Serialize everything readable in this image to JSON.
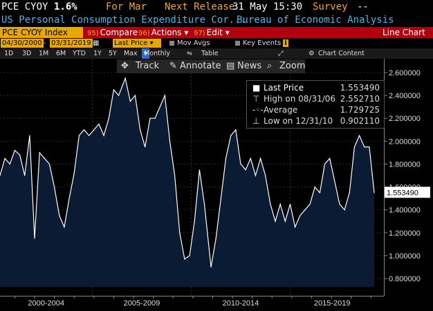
{
  "header": {
    "ticker": "PCE CYOY",
    "last_value": "1.6%",
    "period": "For Mar",
    "next_release_label": "Next Release",
    "next_release": "31 May 15:30",
    "survey_label": "Survey",
    "survey_value": "--"
  },
  "subheader": {
    "description": "US Personal Consumption Expenditure Cor...",
    "source": "Bureau of Economic Analysis"
  },
  "menu": {
    "index_label": "PCE CYOY Index",
    "compare_num": "95)",
    "compare_label": "Compare",
    "actions_num": "96)",
    "actions_label": "Actions",
    "edit_num": "97)",
    "edit_label": "Edit",
    "chart_type": "Line Chart"
  },
  "controls": {
    "start_date": "04/30/2000",
    "end_date": "03/31/2019",
    "price_field": "Last Price",
    "mov_avgs": "Mov Avgs",
    "key_events": "Key Events"
  },
  "ranges": {
    "items": [
      "1D",
      "3D",
      "1M",
      "6M",
      "YTD",
      "1Y",
      "5Y",
      "Max"
    ],
    "frequency": "Monthly",
    "table": "Table",
    "chart_content": "Chart Content"
  },
  "toolbar": {
    "track": "Track",
    "annotate": "Annotate",
    "news": "News",
    "zoom": "Zoom"
  },
  "legend": {
    "last_price_label": "Last Price",
    "last_price_value": "1.553490",
    "high_label": "High on 08/31/06",
    "high_value": "2.552710",
    "average_label": "Average",
    "average_value": "1.729725",
    "low_label": "Low on 12/31/10",
    "low_value": "0.902110"
  },
  "colors": {
    "accent_orange": "#f5a623",
    "title_blue": "#4fb4e8",
    "menu_red": "#b3000f",
    "index_amber": "#e8a800",
    "area_fill": "#0b1b33"
  },
  "chart_data": {
    "type": "area",
    "title": "",
    "xlabel": "",
    "ylabel": "",
    "x_range": [
      "2000-04",
      "2019-03"
    ],
    "ylim": [
      0.7,
      2.7
    ],
    "y_ticks": [
      "2.600000",
      "2.400000",
      "2.200000",
      "2.000000",
      "1.800000",
      "1.600000",
      "1.400000",
      "1.200000",
      "1.000000",
      "0.800000"
    ],
    "x_tick_labels": [
      "2000-2004",
      "2005-2009",
      "2010-2014",
      "2015-2019"
    ],
    "last_value_label": "1.553490",
    "series": [
      {
        "x": [
          "2000-04",
          "2000-07",
          "2000-10",
          "2001-01",
          "2001-04",
          "2001-07",
          "2001-10",
          "2002-01",
          "2002-04",
          "2002-07",
          "2002-10",
          "2003-01",
          "2003-04",
          "2003-07",
          "2003-10",
          "2004-01",
          "2004-04",
          "2004-07",
          "2004-10",
          "2005-01",
          "2005-04",
          "2005-07",
          "2005-10",
          "2006-01",
          "2006-04",
          "2006-08",
          "2006-11",
          "2007-02",
          "2007-05",
          "2007-08",
          "2007-11",
          "2008-02",
          "2008-05",
          "2008-08",
          "2008-11",
          "2009-02",
          "2009-05",
          "2009-08",
          "2009-11",
          "2010-02",
          "2010-05",
          "2010-08",
          "2010-12",
          "2011-03",
          "2011-06",
          "2011-09",
          "2011-12",
          "2012-03",
          "2012-06",
          "2012-09",
          "2012-12",
          "2013-03",
          "2013-06",
          "2013-09",
          "2013-12",
          "2014-03",
          "2014-06",
          "2014-09",
          "2014-12",
          "2015-03",
          "2015-06",
          "2015-09",
          "2015-12",
          "2016-03",
          "2016-06",
          "2016-09",
          "2016-12",
          "2017-03",
          "2017-06",
          "2017-09",
          "2017-12",
          "2018-03",
          "2018-06",
          "2018-09",
          "2018-12",
          "2019-03"
        ],
        "values": [
          1.7,
          1.85,
          1.8,
          1.92,
          1.88,
          1.7,
          2.05,
          1.15,
          1.9,
          1.85,
          1.8,
          1.6,
          1.35,
          1.25,
          1.5,
          1.72,
          2.05,
          2.1,
          2.05,
          2.1,
          2.15,
          2.05,
          2.2,
          2.45,
          2.4,
          2.55,
          2.35,
          2.4,
          2.1,
          1.95,
          2.2,
          2.2,
          2.3,
          2.4,
          2.0,
          1.7,
          1.2,
          0.97,
          1.0,
          1.3,
          1.75,
          1.45,
          0.9,
          1.15,
          1.5,
          1.85,
          2.05,
          2.1,
          1.8,
          1.75,
          1.85,
          1.7,
          1.85,
          1.7,
          1.45,
          1.3,
          1.45,
          1.3,
          1.45,
          1.25,
          1.35,
          1.4,
          1.45,
          1.6,
          1.55,
          1.8,
          1.85,
          1.65,
          1.45,
          1.4,
          1.55,
          1.95,
          2.05,
          1.95,
          1.95,
          1.55
        ]
      }
    ]
  }
}
